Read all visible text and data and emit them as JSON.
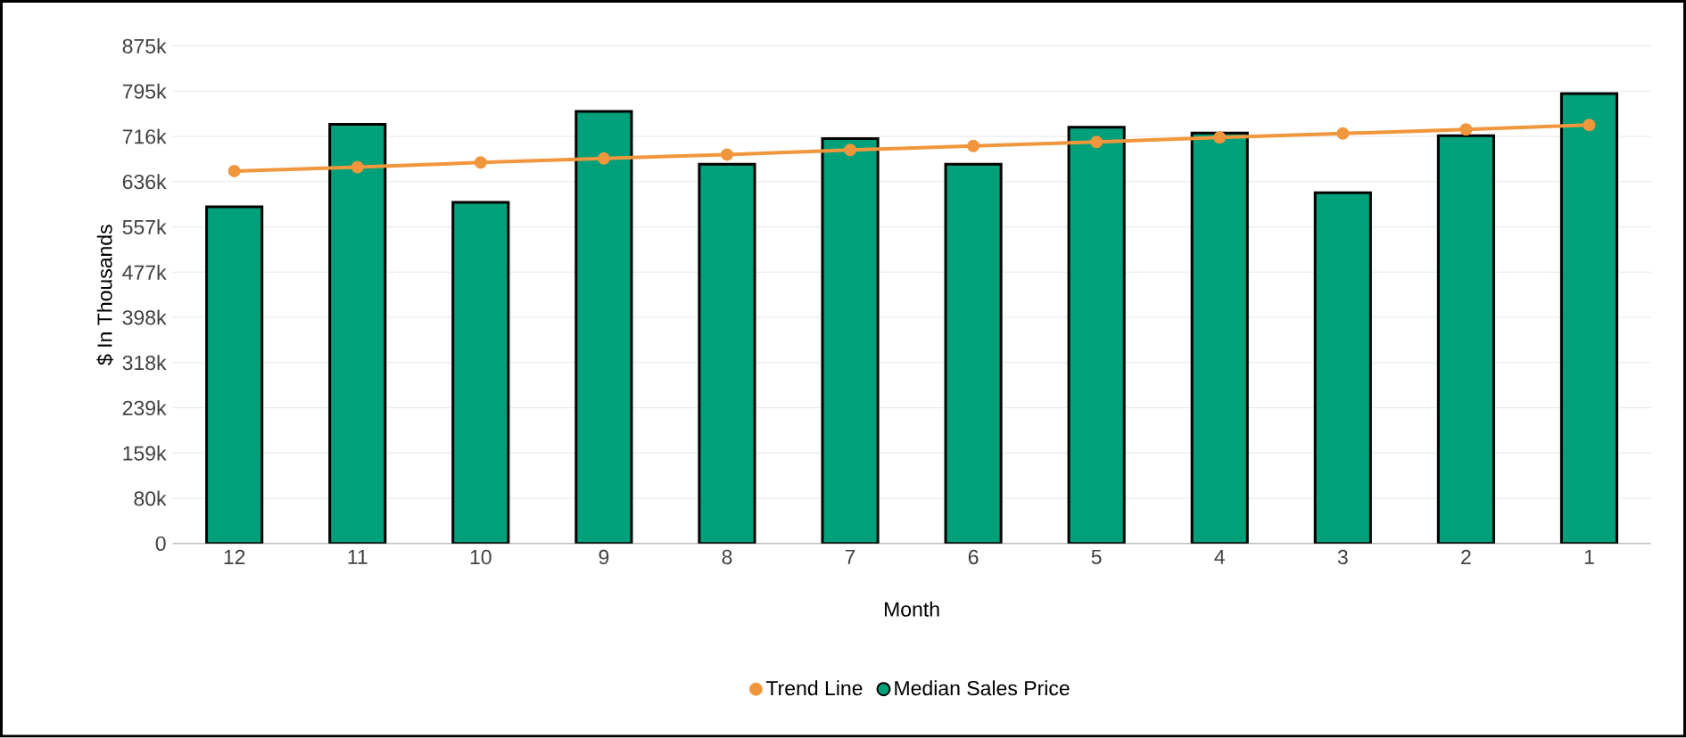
{
  "chart_data": {
    "type": "bar",
    "xlabel": "Month",
    "ylabel": "$ In Thousands",
    "categories": [
      "12",
      "11",
      "10",
      "9",
      "8",
      "7",
      "6",
      "5",
      "4",
      "3",
      "2",
      "1"
    ],
    "series": [
      {
        "name": "Trend Line",
        "type": "line",
        "color": "#f0963c",
        "marker": "circle",
        "values": [
          655,
          662,
          670,
          677,
          684,
          692,
          699,
          706,
          714,
          721,
          728,
          736
        ]
      },
      {
        "name": "Median Sales Price",
        "color": "#00a07a",
        "values": [
          592,
          737,
          600,
          760,
          667,
          712,
          667,
          732,
          722,
          617,
          717,
          791
        ]
      }
    ],
    "ylim": [
      0,
      875
    ],
    "yticks": [
      0,
      {
        "value": 79.55,
        "label": "80k"
      },
      {
        "value": 159.09,
        "label": "159k"
      },
      {
        "value": 238.64,
        "label": "239k"
      },
      {
        "value": 318.18,
        "label": "318k"
      },
      {
        "value": 397.73,
        "label": "398k"
      },
      {
        "value": 477.27,
        "label": "477k"
      },
      {
        "value": 556.82,
        "label": "557k"
      },
      {
        "value": 636.36,
        "label": "636k"
      },
      {
        "value": 715.91,
        "label": "716k"
      },
      {
        "value": 795.45,
        "label": "795k"
      },
      {
        "value": 875,
        "label": "875k"
      }
    ],
    "grid": "y",
    "legend": "bottom"
  }
}
